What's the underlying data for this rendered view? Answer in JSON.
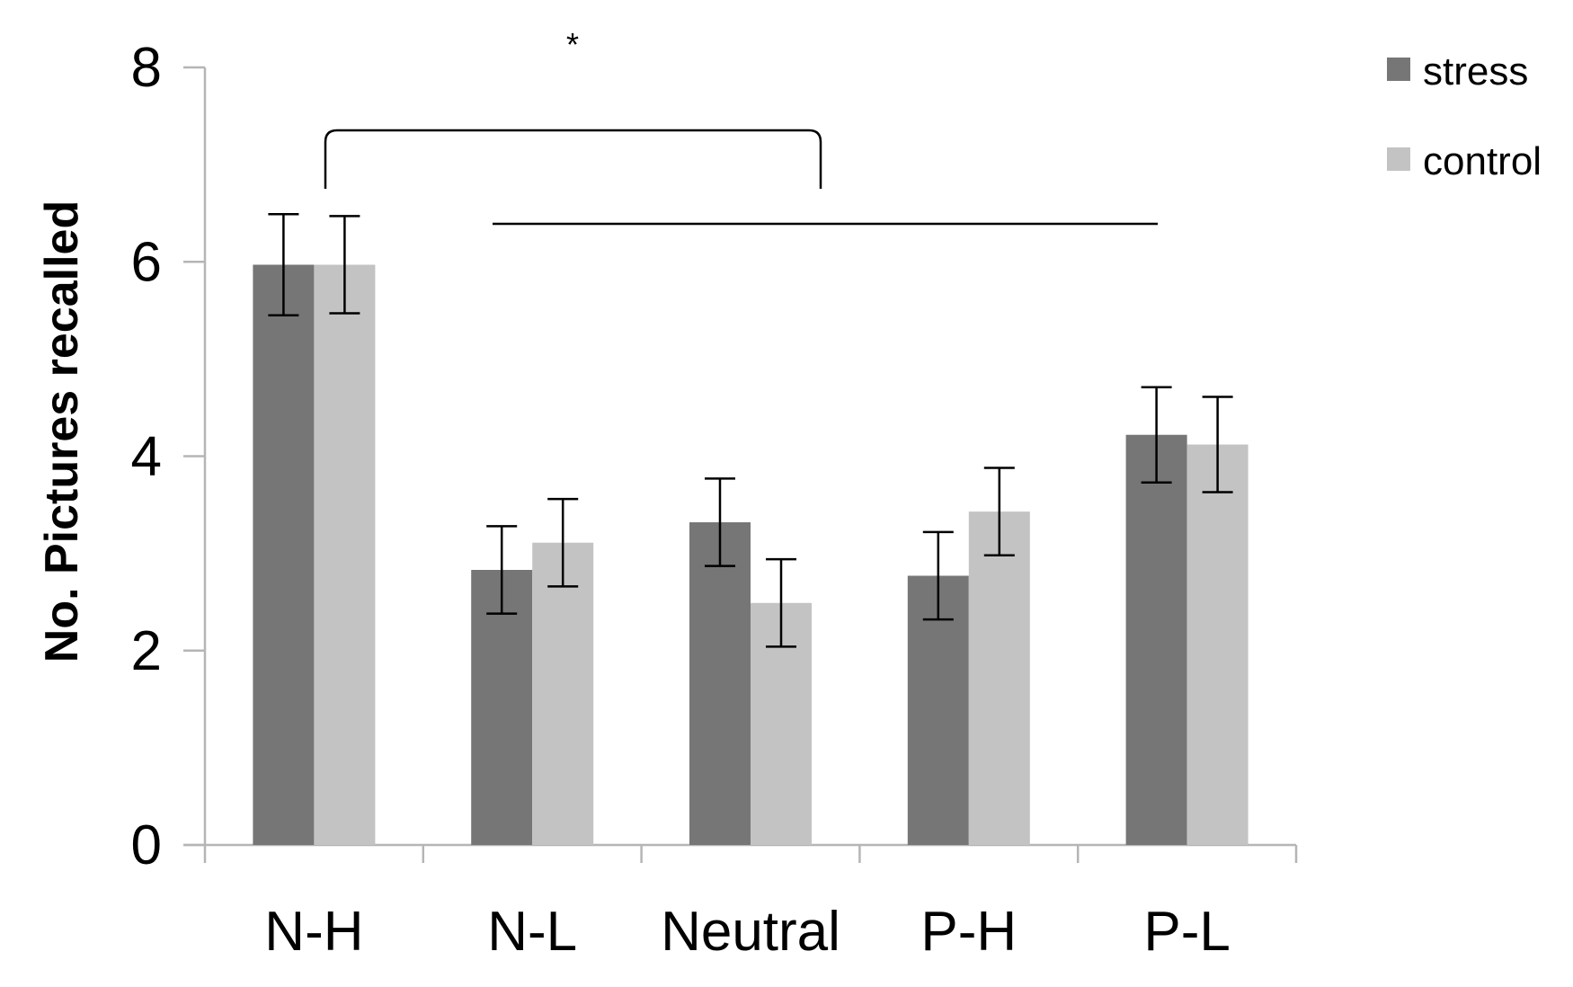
{
  "chart_data": {
    "type": "bar",
    "title": "",
    "xlabel": "",
    "ylabel": "No. Pictures recalled",
    "ylim": [
      0,
      8
    ],
    "yticks": [
      "0",
      "2",
      "4",
      "6",
      "8"
    ],
    "grid": false,
    "legend_position": "top-right",
    "categories": [
      "N-H",
      "N-L",
      "Neutral",
      "P-H",
      "P-L"
    ],
    "series": [
      {
        "name": "stress",
        "color": "#767676",
        "values": [
          5.97,
          2.83,
          3.32,
          2.77,
          4.22
        ],
        "errors": [
          0.52,
          0.45,
          0.45,
          0.45,
          0.49
        ]
      },
      {
        "name": "control",
        "color": "#c3c3c3",
        "values": [
          5.97,
          3.11,
          2.49,
          3.43,
          4.12
        ],
        "errors": [
          0.5,
          0.45,
          0.45,
          0.45,
          0.49
        ]
      }
    ],
    "annotations": {
      "significance_marker": "*",
      "comparison": "N-H vs N-L, Neutral, P-H, P-L"
    }
  }
}
